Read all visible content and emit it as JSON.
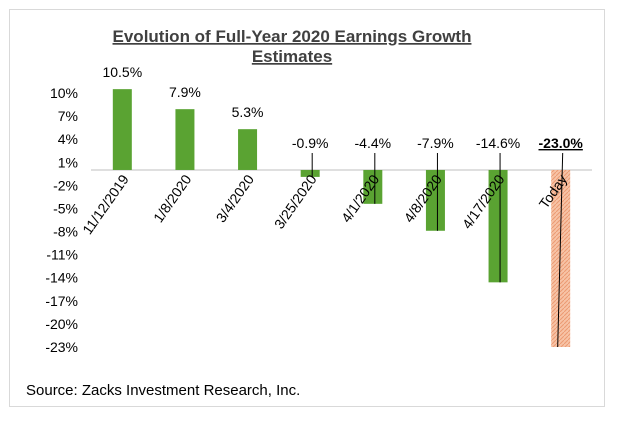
{
  "chart_data": {
    "type": "bar",
    "title_lines": [
      "Evolution of  Full-Year 2020 Earnings Growth",
      "Estimates"
    ],
    "categories": [
      "11/12/2019",
      "1/8/2020",
      "3/4/2020",
      "3/25/2020",
      "4/1/2020",
      "4/8/2020",
      "4/17/2020",
      "Today"
    ],
    "values": [
      10.5,
      7.9,
      5.3,
      -0.9,
      -4.4,
      -7.9,
      -14.6,
      -23.0
    ],
    "data_labels": [
      "10.5%",
      "7.9%",
      "5.3%",
      "-0.9%",
      "-4.4%",
      "-7.9%",
      "-14.6%",
      "-23.0%"
    ],
    "y_ticks": [
      10,
      7,
      4,
      1,
      -2,
      -5,
      -8,
      -11,
      -14,
      -17,
      -20,
      -23
    ],
    "y_tick_labels": [
      "10%",
      "7%",
      "4%",
      "1%",
      "-2%",
      "-5%",
      "-8%",
      "-11%",
      "-14%",
      "-17%",
      "-20%",
      "-23%"
    ],
    "ylim": [
      -23,
      10.5
    ],
    "grid": false,
    "legend": "none",
    "colors": {
      "bar": "#5aa332",
      "bar_highlight": "#f7c3a6",
      "bar_highlight_hatch": "#ec9a72",
      "axis": "#bfbfbf",
      "leader": "#000000"
    },
    "highlight_index": 7
  },
  "source": "Source: Zacks Investment Research, Inc."
}
